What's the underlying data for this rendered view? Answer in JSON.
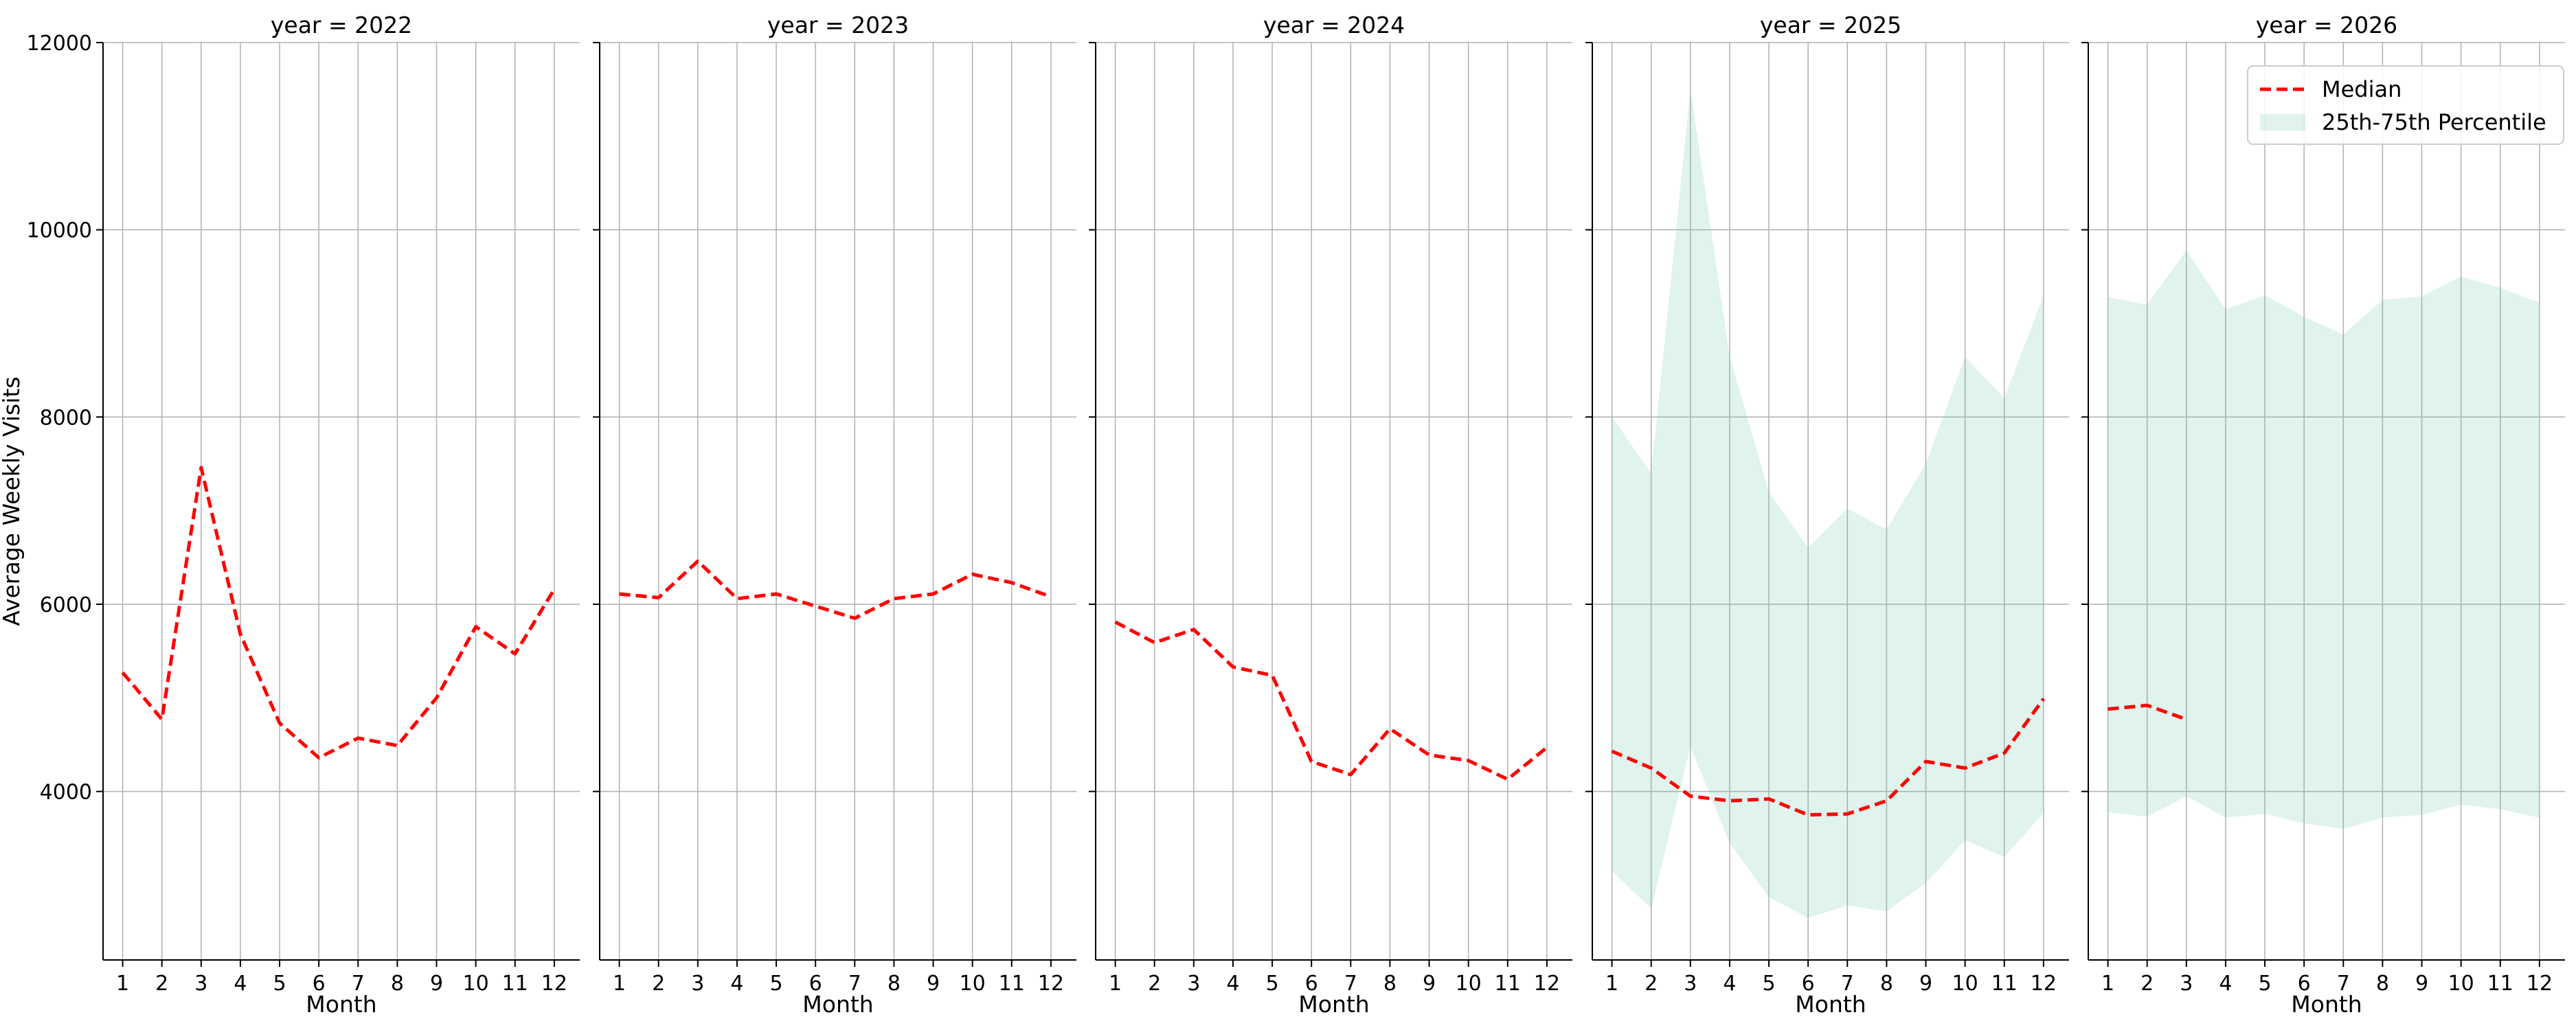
{
  "colors": {
    "median": "#ff0000",
    "band": "#66c2a5",
    "grid": "#b0b0b0",
    "axis": "#000000"
  },
  "legend": {
    "median_label": "Median",
    "band_label": "25th-75th Percentile",
    "placement": "upper right (last panel)"
  },
  "chart_data": {
    "type": "line",
    "facet_by": "year",
    "ylabel": "Average Weekly Visits",
    "xlabel": "Month",
    "ylim": [
      2200,
      12000
    ],
    "yticks": [
      4000,
      6000,
      8000,
      10000,
      12000
    ],
    "xticks": [
      1,
      2,
      3,
      4,
      5,
      6,
      7,
      8,
      9,
      10,
      11,
      12
    ],
    "xlim": [
      0.5,
      12.65
    ],
    "grid": true,
    "shared_y": true,
    "panels": [
      {
        "title": "year = 2022",
        "median": [
          5270,
          4770,
          7460,
          5680,
          4730,
          4360,
          4570,
          4490,
          5000,
          5760,
          5470,
          6160
        ],
        "p25": null,
        "p75": null
      },
      {
        "title": "year = 2023",
        "median": [
          6110,
          6070,
          6460,
          6060,
          6110,
          5980,
          5850,
          6060,
          6110,
          6320,
          6230,
          6080
        ],
        "p25": null,
        "p75": null
      },
      {
        "title": "year = 2024",
        "median": [
          5810,
          5590,
          5730,
          5330,
          5240,
          4320,
          4180,
          4670,
          4390,
          4330,
          4130,
          4470
        ],
        "p25": null,
        "p75": null
      },
      {
        "title": "year = 2025",
        "median": [
          4430,
          4250,
          3950,
          3900,
          3920,
          3750,
          3760,
          3900,
          4320,
          4250,
          4410,
          4990
        ],
        "p25": [
          3150,
          2750,
          4480,
          3450,
          2870,
          2650,
          2780,
          2720,
          3020,
          3480,
          3300,
          3770
        ],
        "p75": [
          8000,
          7400,
          11500,
          8650,
          7200,
          6600,
          7020,
          6800,
          7500,
          8640,
          8200,
          9300
        ]
      },
      {
        "title": "year = 2026",
        "median": [
          4880,
          4920,
          4770
        ],
        "p25": [
          3780,
          3730,
          3950,
          3720,
          3760,
          3660,
          3600,
          3720,
          3750,
          3860,
          3810,
          3720
        ],
        "p75": [
          9280,
          9200,
          9780,
          9150,
          9300,
          9070,
          8880,
          9250,
          9290,
          9500,
          9380,
          9220
        ]
      }
    ]
  }
}
